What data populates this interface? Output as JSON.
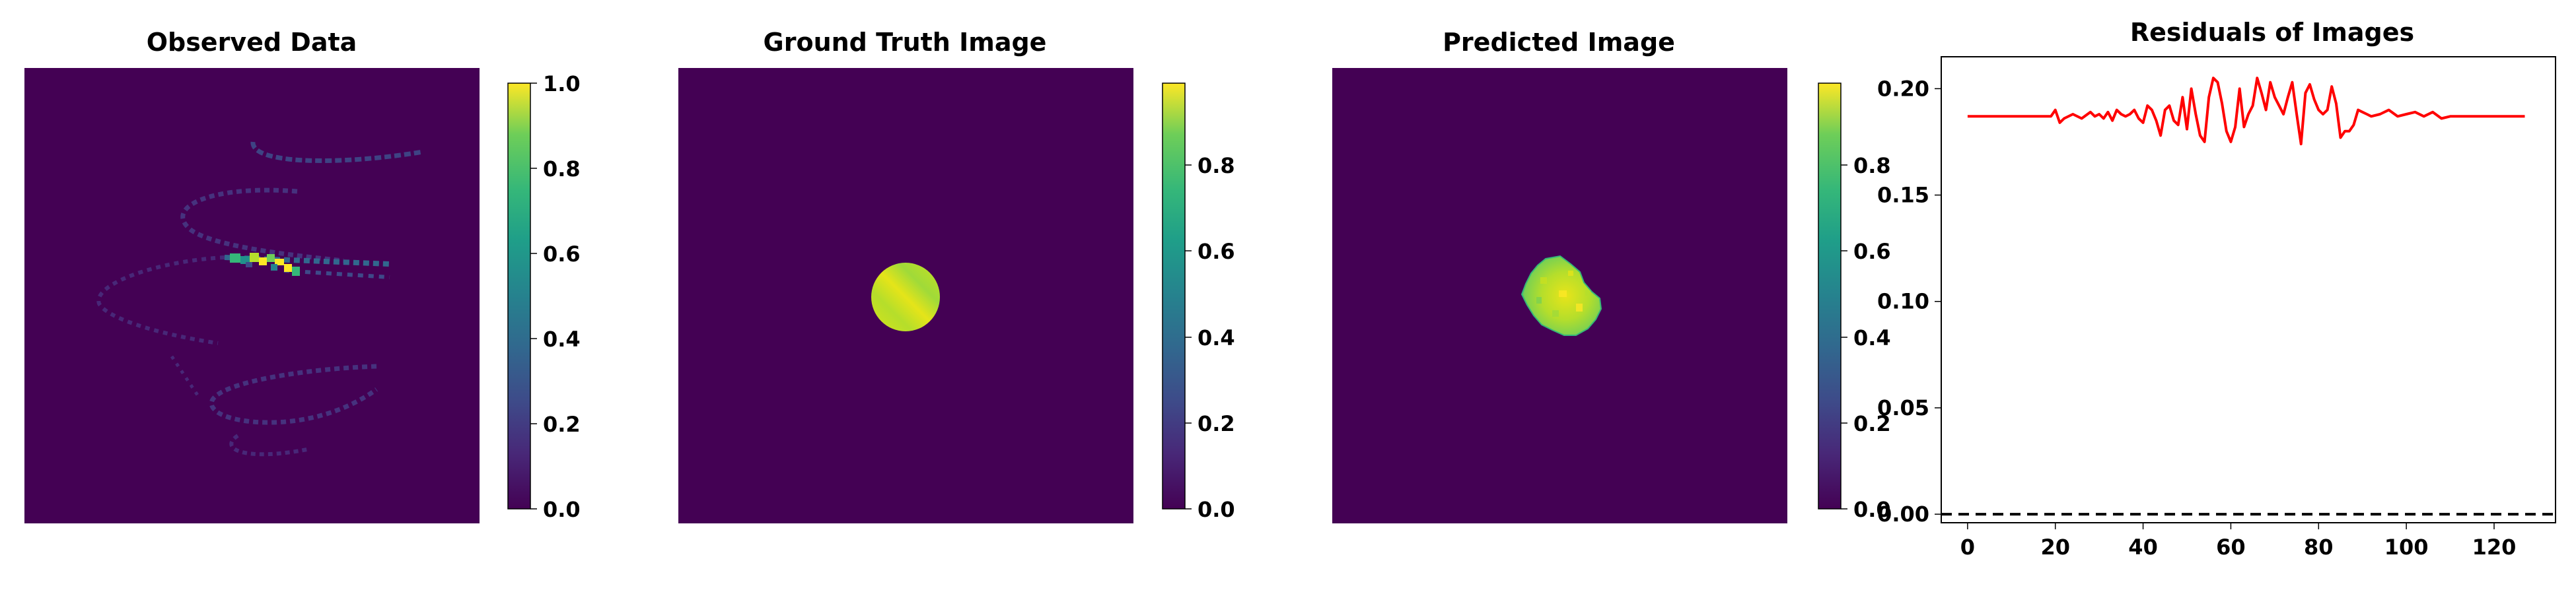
{
  "panels": [
    {
      "id": "observed",
      "title": "Observed Data"
    },
    {
      "id": "groundtruth",
      "title": "Ground Truth Image"
    },
    {
      "id": "predicted",
      "title": "Predicted Image"
    },
    {
      "id": "residuals",
      "title": "Residuals of Images"
    }
  ],
  "colors": {
    "viridis_dark": "#440154",
    "viridis_mid": "#21918c",
    "viridis_light": "#fde725",
    "residual_line": "#ff0000",
    "zero_line": "#000000"
  },
  "colorbars": [
    {
      "panel": "observed",
      "ticks": [
        "0.0",
        "0.2",
        "0.4",
        "0.6",
        "0.8",
        "1.0"
      ],
      "range": [
        0,
        1.0
      ]
    },
    {
      "panel": "groundtruth",
      "ticks": [
        "0.0",
        "0.2",
        "0.4",
        "0.6",
        "0.8"
      ],
      "range": [
        0,
        0.99
      ]
    },
    {
      "panel": "predicted",
      "ticks": [
        "0.0",
        "0.2",
        "0.4",
        "0.6",
        "0.8"
      ],
      "range": [
        0,
        0.99
      ]
    }
  ],
  "chart_data": [
    {
      "type": "heatmap",
      "title": "Observed Data",
      "colormap": "viridis",
      "colorbar_range": [
        0,
        1.0
      ],
      "description_values": "sparse spiral-shaped streaks of low values on a 0-valued background, with a small bright cluster near the center"
    },
    {
      "type": "heatmap",
      "title": "Ground Truth Image",
      "colormap": "viridis",
      "colorbar_range": [
        0,
        0.99
      ],
      "blob": {
        "shape": "disk",
        "value_range": [
          0.85,
          0.99
        ]
      }
    },
    {
      "type": "heatmap",
      "title": "Predicted Image",
      "colormap": "viridis",
      "colorbar_range": [
        0,
        0.99
      ],
      "blob": {
        "shape": "irregular disk",
        "value_range": [
          0.75,
          0.99
        ]
      }
    },
    {
      "type": "line",
      "title": "Residuals of Images",
      "xlabel": "",
      "ylabel": "",
      "xlim": [
        -6,
        134
      ],
      "ylim": [
        -0.004,
        0.215
      ],
      "xticks": [
        0,
        20,
        40,
        60,
        80,
        100,
        120
      ],
      "yticks": [
        0.0,
        0.05,
        0.1,
        0.15,
        0.2
      ],
      "ytick_labels": [
        "0.00",
        "0.05",
        "0.10",
        "0.15",
        "0.20"
      ],
      "grid": false,
      "series": [
        {
          "style": "solid",
          "color": "#ff0000",
          "x": [
            0,
            2,
            4,
            6,
            8,
            10,
            12,
            14,
            16,
            18,
            19,
            20,
            21,
            22,
            24,
            26,
            28,
            29,
            30,
            31,
            32,
            33,
            34,
            35,
            36,
            37,
            38,
            39,
            40,
            41,
            42,
            43,
            44,
            45,
            46,
            47,
            48,
            49,
            50,
            51,
            52,
            53,
            54,
            55,
            56,
            57,
            58,
            59,
            60,
            61,
            62,
            63,
            64,
            65,
            66,
            67,
            68,
            69,
            70,
            71,
            72,
            73,
            74,
            75,
            76,
            77,
            78,
            79,
            80,
            81,
            82,
            83,
            84,
            85,
            86,
            87,
            88,
            89,
            90,
            91,
            92,
            94,
            96,
            98,
            100,
            102,
            104,
            106,
            108,
            110,
            112,
            114,
            116,
            118,
            120,
            122,
            124,
            126,
            127
          ],
          "y": [
            0.187,
            0.187,
            0.187,
            0.187,
            0.187,
            0.187,
            0.187,
            0.187,
            0.187,
            0.187,
            0.187,
            0.19,
            0.184,
            0.186,
            0.188,
            0.186,
            0.189,
            0.187,
            0.188,
            0.186,
            0.189,
            0.185,
            0.19,
            0.188,
            0.187,
            0.188,
            0.19,
            0.186,
            0.184,
            0.192,
            0.19,
            0.185,
            0.178,
            0.19,
            0.192,
            0.185,
            0.183,
            0.196,
            0.181,
            0.2,
            0.188,
            0.178,
            0.175,
            0.196,
            0.205,
            0.203,
            0.193,
            0.18,
            0.175,
            0.182,
            0.2,
            0.182,
            0.188,
            0.192,
            0.205,
            0.198,
            0.19,
            0.203,
            0.196,
            0.192,
            0.188,
            0.196,
            0.203,
            0.188,
            0.174,
            0.198,
            0.202,
            0.195,
            0.19,
            0.188,
            0.19,
            0.201,
            0.193,
            0.177,
            0.18,
            0.18,
            0.183,
            0.19,
            0.189,
            0.188,
            0.187,
            0.188,
            0.19,
            0.187,
            0.188,
            0.189,
            0.187,
            0.189,
            0.186,
            0.187,
            0.187,
            0.187,
            0.187,
            0.187,
            0.187,
            0.187,
            0.187,
            0.187,
            0.187
          ]
        },
        {
          "style": "dashed",
          "color": "#000000",
          "x": [
            -6,
            134
          ],
          "y": [
            0.0,
            0.0
          ]
        }
      ]
    }
  ]
}
